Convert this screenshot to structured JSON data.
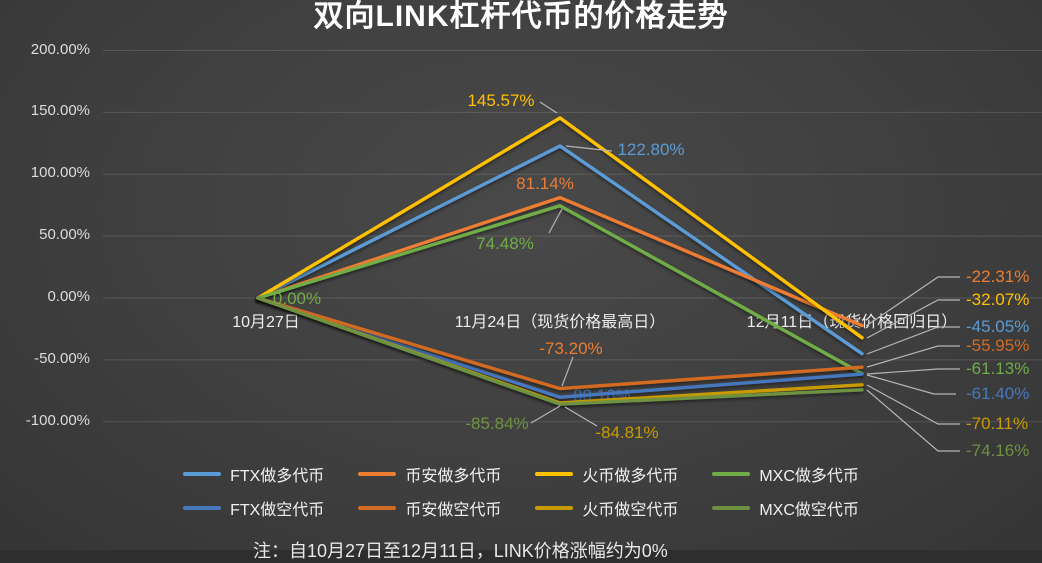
{
  "title": "双向LINK杠杆代币的价格走势",
  "note": "注：自10月27日至12月11日，LINK价格涨幅约为0%",
  "chart_data": {
    "type": "line",
    "title": "双向LINK杠杆代币的价格走势",
    "categories": [
      "10月27日",
      "11月24日（现货价格最高日）",
      "12月11日（现货价格回归日）"
    ],
    "yticks": [
      "200.00%",
      "150.00%",
      "100.00%",
      "50.00%",
      "0.00%",
      "-50.00%",
      "-100.00%"
    ],
    "ylim": [
      -100,
      200
    ],
    "grid": true,
    "legend_position": "bottom",
    "background": "#3f3f3f",
    "series": [
      {
        "id": "ftx-long",
        "name": "FTX做多代币",
        "color": "#5B9BD5",
        "values": [
          0,
          122.8,
          -45.05
        ]
      },
      {
        "id": "binance-long",
        "name": "币安做多代币",
        "color": "#ED7D31",
        "values": [
          0,
          81.14,
          -22.31
        ]
      },
      {
        "id": "huobi-long",
        "name": "火币做多代币",
        "color": "#FFC000",
        "values": [
          0,
          145.57,
          -32.07
        ]
      },
      {
        "id": "mxc-long",
        "name": "MXC做多代币",
        "color": "#70AD47",
        "values": [
          0,
          74.48,
          -61.13
        ]
      },
      {
        "id": "ftx-short",
        "name": "FTX做空代币",
        "color": "#4678BE",
        "values": [
          0,
          -80.16,
          -61.4
        ]
      },
      {
        "id": "binance-short",
        "name": "币安做空代币",
        "color": "#D26B24",
        "values": [
          0,
          -73.2,
          -55.95
        ]
      },
      {
        "id": "huobi-short",
        "name": "火币做空代币",
        "color": "#C79B00",
        "values": [
          0,
          -84.81,
          -70.11
        ]
      },
      {
        "id": "mxc-short",
        "name": "MXC做空代币",
        "color": "#6E9242",
        "values": [
          0,
          -85.84,
          -74.16
        ]
      }
    ],
    "point_labels": [
      {
        "id": "huobi-long-peak",
        "text": "145.57%",
        "color": "#FFC000"
      },
      {
        "id": "ftx-long-peak",
        "text": "122.80%",
        "color": "#5B9BD5"
      },
      {
        "id": "binance-long-peak",
        "text": "81.14%",
        "color": "#ED7D31"
      },
      {
        "id": "mxc-long-peak",
        "text": "74.48%",
        "color": "#70AD47"
      },
      {
        "id": "start-zero",
        "text": "0.00%",
        "color": "#70AD47"
      },
      {
        "id": "binance-short-trough",
        "text": "-73.20%",
        "color": "#ED7D31"
      },
      {
        "id": "ftx-short-trough",
        "text": "-80.16%",
        "color": "#4678BE"
      },
      {
        "id": "huobi-short-trough",
        "text": "-84.81%",
        "color": "#C79B00"
      },
      {
        "id": "mxc-short-trough",
        "text": "-85.84%",
        "color": "#6E9242"
      }
    ],
    "end_labels": [
      {
        "id": "binance-long-end",
        "text": "-22.31%",
        "color": "#ED7D31"
      },
      {
        "id": "huobi-long-end",
        "text": "-32.07%",
        "color": "#FFC000"
      },
      {
        "id": "ftx-long-end",
        "text": "-45.05%",
        "color": "#5B9BD5"
      },
      {
        "id": "binance-short-end",
        "text": "-55.95%",
        "color": "#D26B24"
      },
      {
        "id": "mxc-long-end",
        "text": "-61.13%",
        "color": "#70AD47"
      },
      {
        "id": "ftx-short-end",
        "text": "-61.40%",
        "color": "#4678BE"
      },
      {
        "id": "huobi-short-end",
        "text": "-70.11%",
        "color": "#C79B00"
      },
      {
        "id": "mxc-short-end",
        "text": "-74.16%",
        "color": "#6E9242"
      }
    ]
  }
}
